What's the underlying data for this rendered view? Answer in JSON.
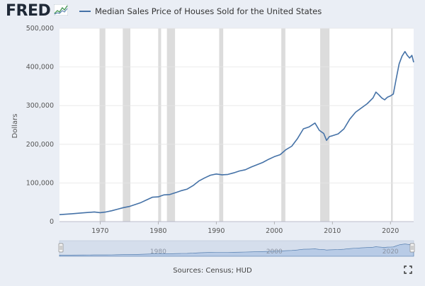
{
  "header": {
    "logo_text": "FRED",
    "series_title": "Median Sales Price of Houses Sold for the United States"
  },
  "colors": {
    "background": "#eaeef5",
    "plot_bg": "#ffffff",
    "line": "#4572a7",
    "recession": "#dcdcdc",
    "navigator_fill": "#b8cbe6"
  },
  "footer": {
    "sources": "Sources: Census; HUD"
  },
  "icons": {
    "logo_graph": "fred-sparkline-icon",
    "expand": "fullscreen-expand-icon",
    "handle_left": "navigator-handle-icon",
    "handle_right": "navigator-handle-icon"
  },
  "navigator": {
    "year_labels": [
      "1980",
      "2000",
      "2020"
    ]
  },
  "chart_data": {
    "type": "line",
    "title": "",
    "ylabel": "Dollars",
    "xlim": [
      1963,
      2024
    ],
    "ylim": [
      0,
      500000
    ],
    "x_ticks": [
      1970,
      1980,
      1990,
      2000,
      2010,
      2020
    ],
    "x_tick_labels": [
      "1970",
      "1980",
      "1990",
      "2000",
      "2010",
      "2020"
    ],
    "y_ticks": [
      0,
      100000,
      200000,
      300000,
      400000,
      500000
    ],
    "y_tick_labels": [
      "0",
      "100,000",
      "200,000",
      "300,000",
      "400,000",
      "500,000"
    ],
    "grid": true,
    "legend_position": "top-left",
    "recessions": [
      [
        1969.9,
        1970.9
      ],
      [
        1973.9,
        1975.2
      ],
      [
        1980.0,
        1980.5
      ],
      [
        1981.5,
        1982.9
      ],
      [
        1990.5,
        1991.2
      ],
      [
        2001.2,
        2001.9
      ],
      [
        2007.9,
        2009.5
      ],
      [
        2020.1,
        2020.4
      ]
    ],
    "series": [
      {
        "name": "Median Sales Price of Houses Sold for the United States",
        "x": [
          1963.0,
          1965,
          1967,
          1969,
          1970,
          1971,
          1972,
          1973,
          1974,
          1975,
          1976,
          1977,
          1978,
          1979,
          1980,
          1981,
          1982,
          1983,
          1984,
          1985,
          1986,
          1987,
          1988,
          1989,
          1990,
          1991,
          1992,
          1993,
          1994,
          1995,
          1996,
          1997,
          1998,
          1999,
          2000,
          2001,
          2002,
          2003,
          2004,
          2005,
          2006,
          2007.0,
          2007.75,
          2008.5,
          2009.0,
          2009.5,
          2010,
          2011,
          2012,
          2013,
          2014,
          2015,
          2016,
          2017,
          2017.5,
          2018,
          2018.5,
          2019,
          2019.5,
          2020,
          2020.5,
          2021,
          2021.5,
          2022,
          2022.5,
          2022.9,
          2023.3,
          2023.7,
          2024
        ],
        "y": [
          18000,
          20000,
          22500,
          25000,
          23000,
          25000,
          28000,
          32000,
          36000,
          39000,
          44000,
          49000,
          56000,
          63000,
          64000,
          69000,
          70000,
          75000,
          80000,
          84000,
          93000,
          105000,
          113000,
          120000,
          123000,
          121000,
          122000,
          126000,
          131000,
          134000,
          141000,
          147000,
          153000,
          161000,
          168000,
          173000,
          186000,
          195000,
          215000,
          240000,
          245000,
          255000,
          236000,
          228000,
          210000,
          220000,
          222000,
          227000,
          240000,
          265000,
          283000,
          294000,
          305000,
          320000,
          335000,
          328000,
          320000,
          315000,
          322000,
          325000,
          330000,
          370000,
          408000,
          428000,
          440000,
          430000,
          423000,
          430000,
          412000
        ]
      }
    ]
  }
}
